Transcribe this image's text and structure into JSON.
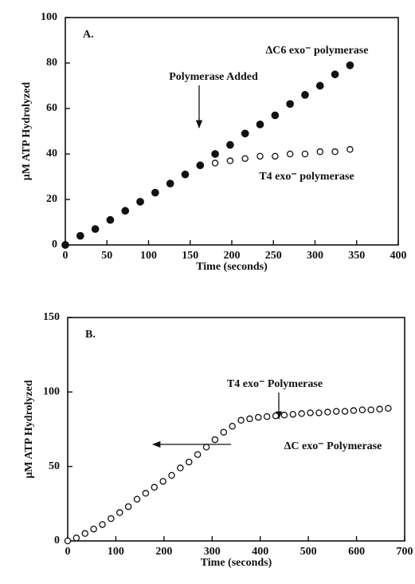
{
  "chart_data": [
    {
      "type": "scatter",
      "panel_label": "A.",
      "xlabel": "Time (seconds)",
      "ylabel": "μM ATP Hydrolyzed",
      "xlim": [
        0,
        400
      ],
      "xticks": [
        0,
        50,
        100,
        150,
        200,
        250,
        300,
        350,
        400
      ],
      "ylim": [
        0,
        100
      ],
      "yticks": [
        0,
        20,
        40,
        60,
        80,
        100
      ],
      "annotations": [
        "ΔC6 exo⁻ polymerase",
        "Polymerase Added",
        "T4 exo⁻ polymerase"
      ],
      "series": [
        {
          "marker": "filled",
          "color": "#111111",
          "x": [
            0,
            18,
            36,
            54,
            72,
            90,
            108,
            126,
            144,
            162,
            180,
            198,
            216,
            234,
            252,
            270,
            288,
            306,
            324,
            342
          ],
          "values": [
            0,
            4,
            7,
            11,
            15,
            19,
            23,
            27,
            31,
            35,
            40,
            44,
            49,
            53,
            57,
            62,
            66,
            70,
            75,
            79
          ]
        },
        {
          "marker": "open",
          "color": "#111111",
          "x": [
            180,
            198,
            216,
            234,
            252,
            270,
            288,
            306,
            324,
            342
          ],
          "values": [
            36,
            37,
            38,
            39,
            39,
            40,
            40,
            41,
            41,
            42
          ]
        }
      ]
    },
    {
      "type": "scatter",
      "panel_label": "B.",
      "xlabel": "Time (seconds)",
      "ylabel": "μM ATP Hydrolyzed",
      "xlim": [
        0,
        700
      ],
      "xticks": [
        0,
        100,
        200,
        300,
        400,
        500,
        600,
        700
      ],
      "ylim": [
        0,
        150
      ],
      "yticks": [
        0,
        50,
        100,
        150
      ],
      "annotations": [
        "T4 exo⁻ Polymerase",
        "ΔC exo⁻ Polymerase"
      ],
      "series": [
        {
          "marker": "open",
          "color": "#111111",
          "x": [
            0,
            18,
            36,
            54,
            72,
            90,
            108,
            126,
            144,
            162,
            180,
            198,
            216,
            234,
            252,
            270,
            288,
            306,
            324,
            342,
            360,
            378,
            396,
            414,
            432,
            450,
            468,
            486,
            504,
            522,
            540,
            558,
            576,
            594,
            612,
            630,
            648,
            666
          ],
          "values": [
            0,
            2,
            5,
            8,
            11,
            15,
            19,
            23,
            28,
            32,
            36,
            40,
            44,
            49,
            53,
            58,
            63,
            68,
            73,
            77,
            81,
            82,
            83,
            83.5,
            84,
            84.5,
            85,
            85.5,
            86,
            86,
            86.5,
            87,
            87,
            87.5,
            88,
            88,
            88.5,
            89
          ]
        }
      ]
    }
  ]
}
